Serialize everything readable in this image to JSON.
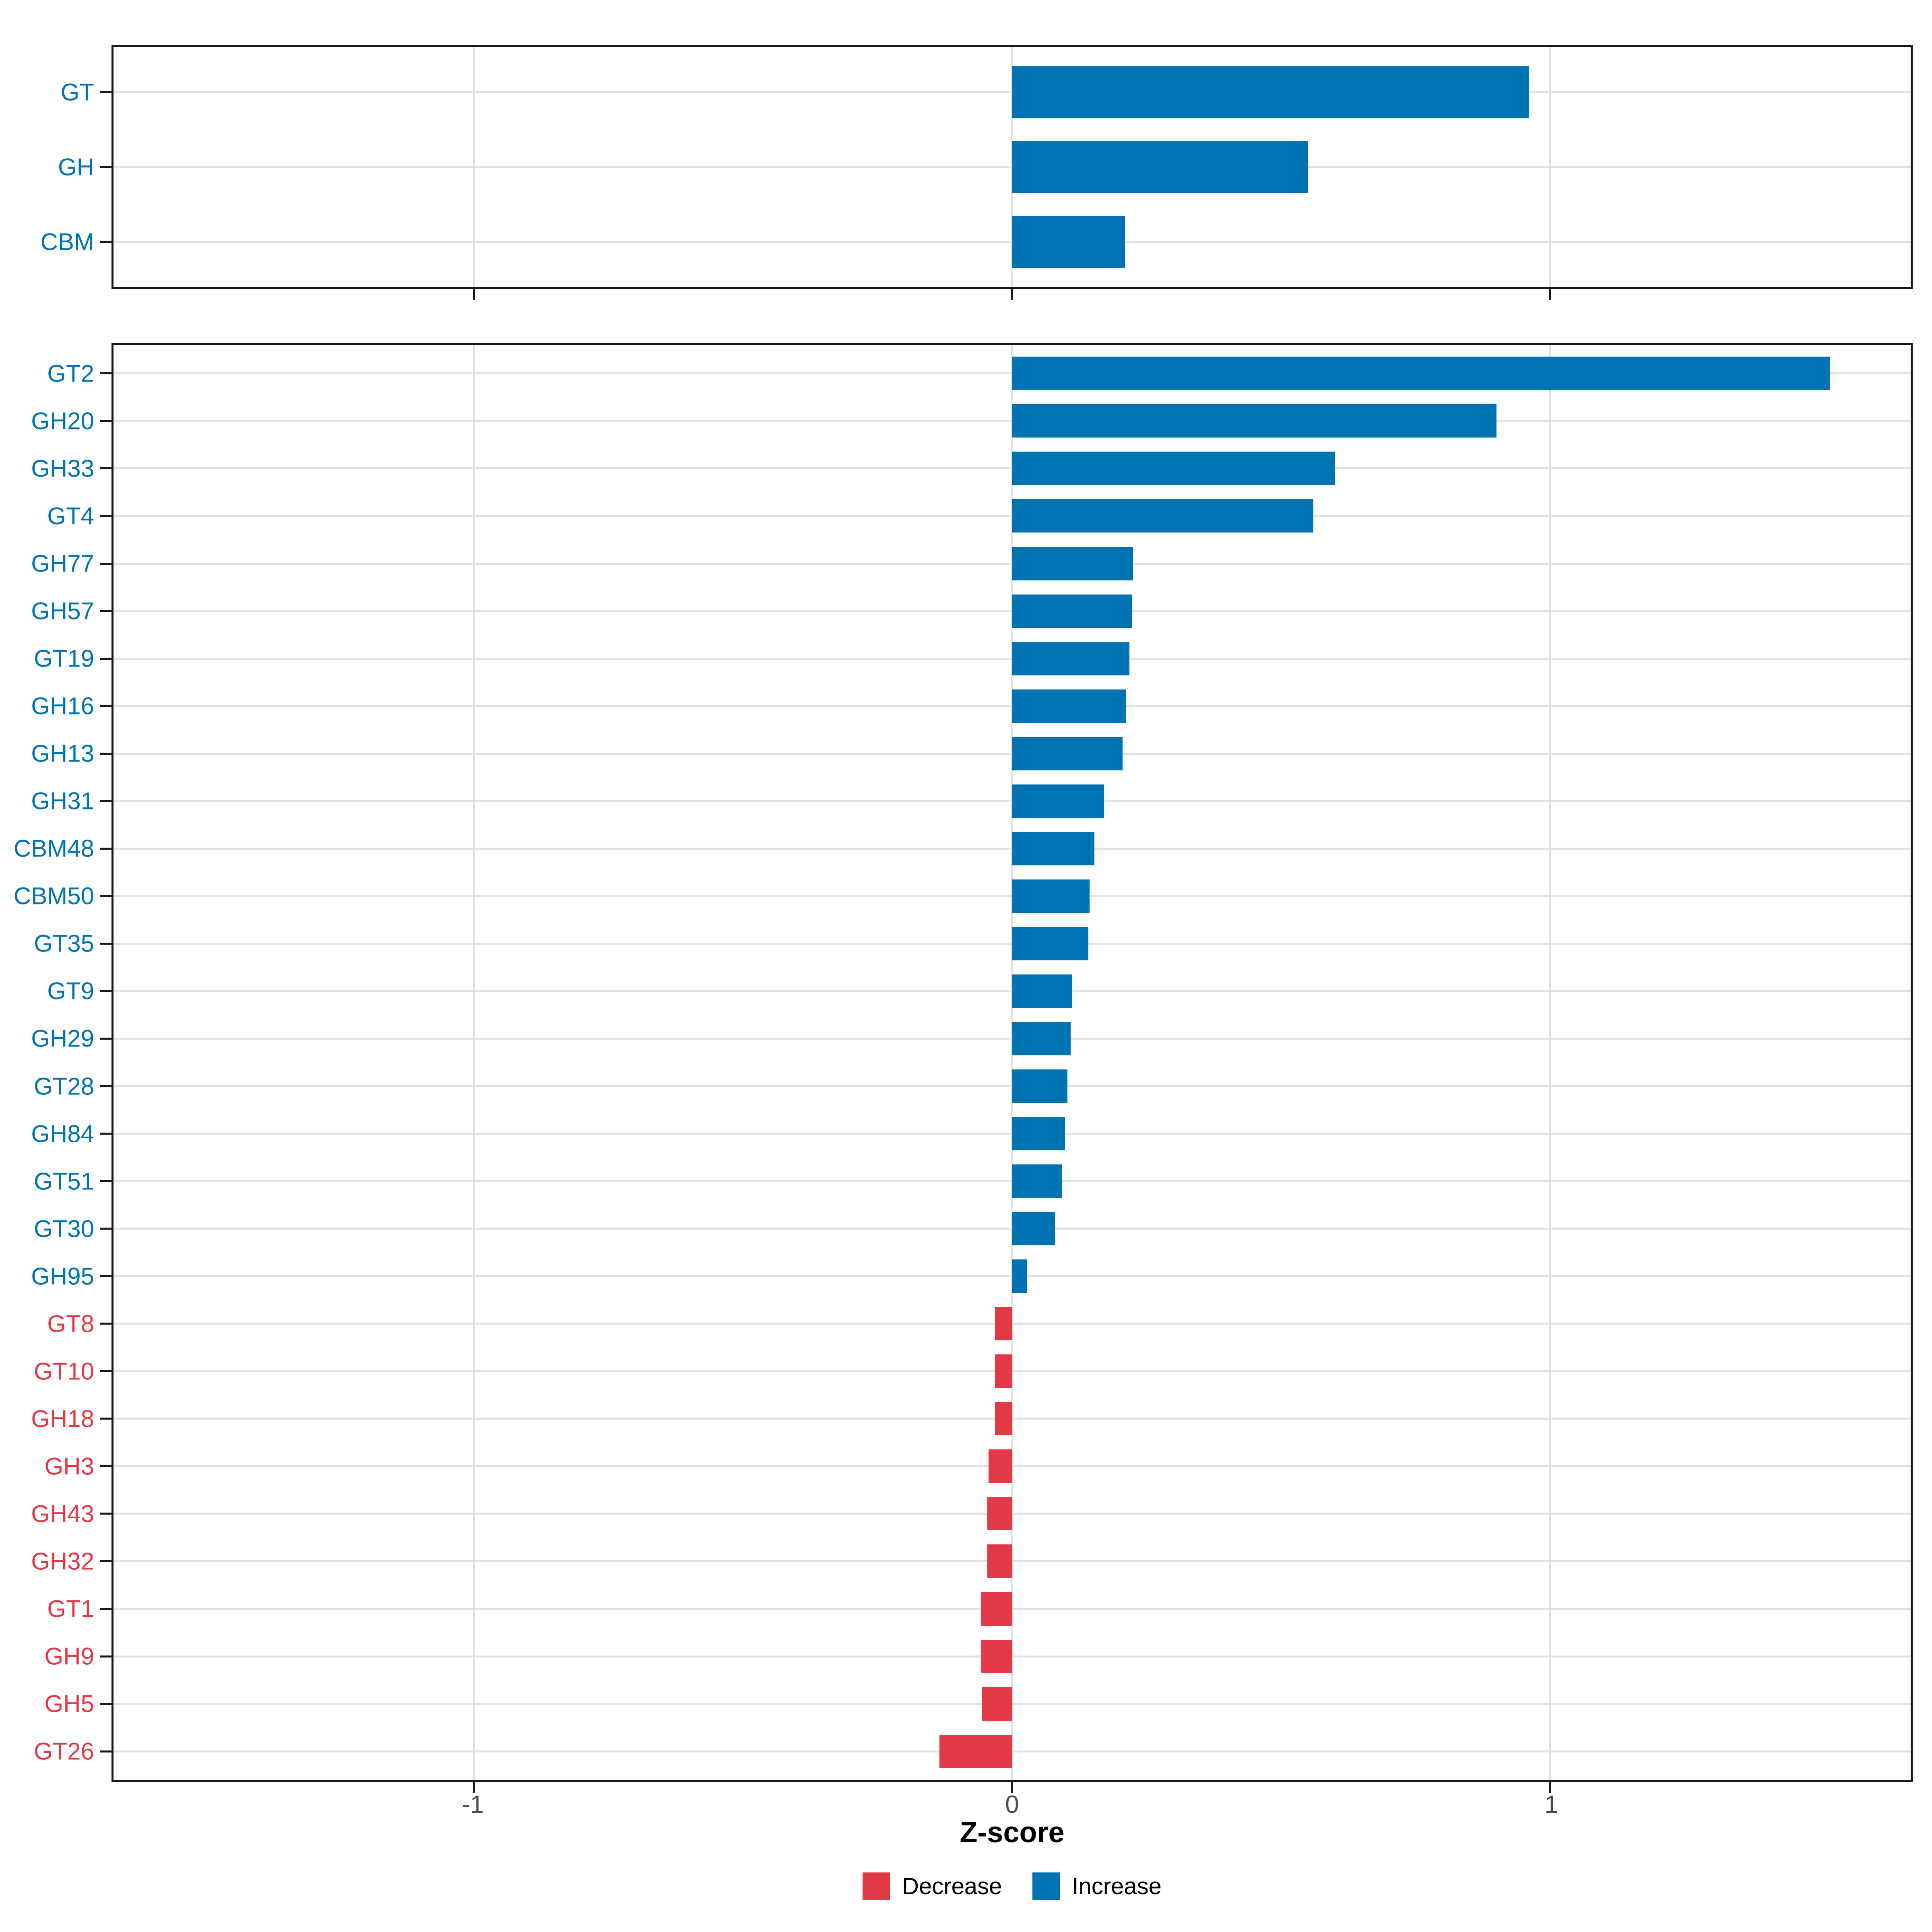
{
  "colors": {
    "increase": "#0074B3",
    "decrease": "#E33946",
    "grid": "#E2E2E2",
    "panel_border": "#1A1A1A",
    "axis_tick": "#1A1A1A",
    "tick_label": "#4D4D4D",
    "background": "#FFFFFF"
  },
  "axis": {
    "xlabel": "Z-score",
    "xmin": -1.67,
    "xmax": 1.67,
    "ticks": [
      -1,
      0,
      1
    ],
    "tick_labels": [
      "-1",
      "0",
      "1"
    ],
    "grid": "major-only",
    "tick_label_side": "bottom-panel-only"
  },
  "legend": {
    "position": "bottom-center",
    "items": [
      {
        "label": "Decrease",
        "color": "#E33946"
      },
      {
        "label": "Increase",
        "color": "#0074B3"
      }
    ]
  },
  "chart_data": [
    {
      "type": "bar",
      "orientation": "horizontal",
      "panel": "top-summary",
      "title": "",
      "xlabel": "Z-score",
      "xlim": [
        -1.67,
        1.67
      ],
      "categories": [
        "GT",
        "GH",
        "CBM"
      ],
      "values": [
        0.96,
        0.55,
        0.21
      ],
      "directions": [
        "Increase",
        "Increase",
        "Increase"
      ]
    },
    {
      "type": "bar",
      "orientation": "horizontal",
      "panel": "bottom-families",
      "title": "",
      "xlabel": "Z-score",
      "xlim": [
        -1.67,
        1.67
      ],
      "categories": [
        "GT2",
        "GH20",
        "GH33",
        "GT4",
        "GH77",
        "GH57",
        "GT19",
        "GH16",
        "GH13",
        "GH31",
        "CBM48",
        "CBM50",
        "GT35",
        "GT9",
        "GH29",
        "GT28",
        "GH84",
        "GT51",
        "GT30",
        "GH95",
        "GT8",
        "GT10",
        "GH18",
        "GH3",
        "GH43",
        "GH32",
        "GT1",
        "GH9",
        "GH5",
        "GT26"
      ],
      "values": [
        1.52,
        0.9,
        0.6,
        0.56,
        0.225,
        0.223,
        0.218,
        0.212,
        0.205,
        0.171,
        0.153,
        0.144,
        0.142,
        0.111,
        0.109,
        0.103,
        0.098,
        0.093,
        0.08,
        0.028,
        -0.032,
        -0.032,
        -0.032,
        -0.044,
        -0.046,
        -0.046,
        -0.057,
        -0.057,
        -0.056,
        -0.135
      ],
      "directions": [
        "Increase",
        "Increase",
        "Increase",
        "Increase",
        "Increase",
        "Increase",
        "Increase",
        "Increase",
        "Increase",
        "Increase",
        "Increase",
        "Increase",
        "Increase",
        "Increase",
        "Increase",
        "Increase",
        "Increase",
        "Increase",
        "Increase",
        "Increase",
        "Decrease",
        "Decrease",
        "Decrease",
        "Decrease",
        "Decrease",
        "Decrease",
        "Decrease",
        "Decrease",
        "Decrease",
        "Decrease"
      ]
    }
  ]
}
